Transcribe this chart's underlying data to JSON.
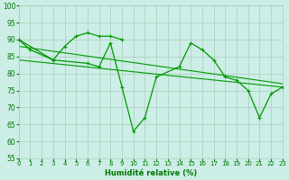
{
  "bg_color": "#cceee6",
  "grid_color": "#aaccbb",
  "line_color": "#009900",
  "xlabel": "Humidité relative (%)",
  "xlabel_color": "#007700",
  "tick_color": "#007700",
  "xmin": 0,
  "xmax": 23,
  "ymin": 55,
  "ymax": 100,
  "yticks": [
    55,
    60,
    65,
    70,
    75,
    80,
    85,
    90,
    95,
    100
  ],
  "xticks": [
    0,
    1,
    2,
    3,
    4,
    5,
    6,
    7,
    8,
    9,
    10,
    11,
    12,
    13,
    14,
    15,
    16,
    17,
    18,
    19,
    20,
    21,
    22,
    23
  ],
  "series": [
    {
      "x": [
        0,
        1,
        3,
        4,
        5,
        6,
        7,
        8,
        9
      ],
      "y": [
        90,
        87,
        84,
        88,
        91,
        92,
        91,
        91,
        90
      ]
    },
    {
      "x": [
        0,
        3,
        6,
        7,
        8,
        9,
        10,
        11,
        12,
        14,
        15,
        16,
        17,
        18,
        19,
        20,
        21,
        22,
        23
      ],
      "y": [
        90,
        84,
        83,
        82,
        89,
        76,
        63,
        67,
        79,
        82,
        89,
        87,
        84,
        79,
        78,
        75,
        67,
        74,
        76
      ]
    },
    {
      "x": [
        0,
        23
      ],
      "y": [
        88,
        77
      ]
    },
    {
      "x": [
        0,
        23
      ],
      "y": [
        84,
        76
      ]
    }
  ]
}
